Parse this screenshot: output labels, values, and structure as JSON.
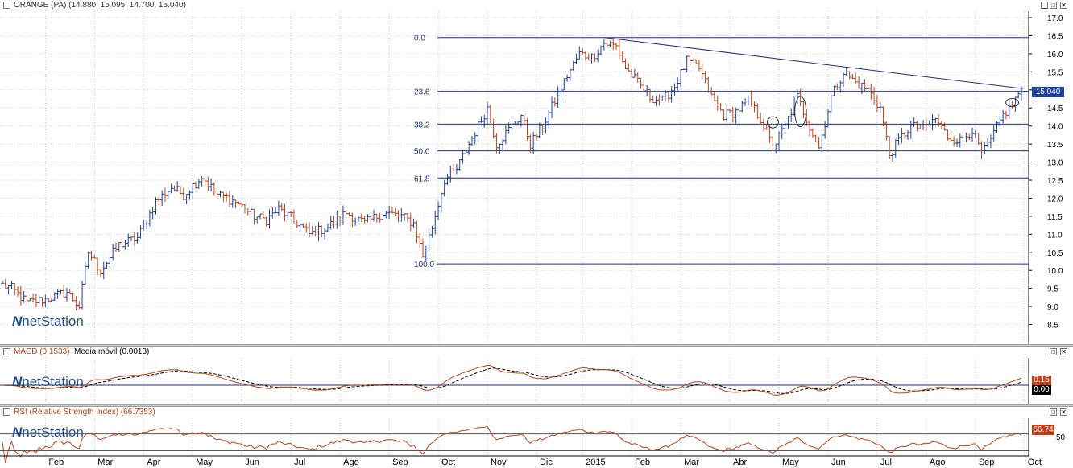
{
  "main_pane": {
    "title": "ORANGE (PA) (14.880, 15.095, 14.700, 15.040)",
    "price_tag": "15.040",
    "logo_mark": "N",
    "logo_text": "netStation"
  },
  "macd_pane": {
    "title": "MACD (0.1533)",
    "title2": "Media móvil (0.0013)",
    "tag_macd": "0.15",
    "tag_signal": "0.00",
    "logo_mark": "N",
    "logo_text": "netStation"
  },
  "rsi_pane": {
    "title": "RSI (Relative Strength Index) (66.7353)",
    "tag_rsi": "66.74",
    "axis_label": "50",
    "logo_mark": "N",
    "logo_text": "netStation"
  },
  "window_buttons": {
    "minimize": "_",
    "maximize": "□",
    "close": "✕"
  },
  "colors": {
    "up": "#1f3f9f",
    "down": "#c0401a",
    "fib": "#1f2f7f",
    "macd": "#c0401a",
    "signal": "#000000",
    "rsi": "#c0401a"
  },
  "chart_data": [
    {
      "type": "ohlc",
      "title": "ORANGE (PA) (14.880, 15.095, 14.700, 15.040)",
      "ylim": [
        8.0,
        17.0
      ],
      "y_ticks": [
        "8.5",
        "9.0",
        "9.5",
        "10.0",
        "10.5",
        "11.0",
        "11.5",
        "12.0",
        "12.5",
        "13.0",
        "13.5",
        "14.0",
        "14.5",
        "15.0",
        "15.5",
        "16.0",
        "16.5",
        "17.0"
      ],
      "x_tick_labels": [
        "Feb",
        "Mar",
        "Apr",
        "May",
        "Jun",
        "Jul",
        "Ago",
        "Sep",
        "Oct",
        "Nov",
        "Dic",
        "2015",
        "Feb",
        "Mar",
        "Abr",
        "May",
        "Jun",
        "Jul",
        "Ago",
        "Sep",
        "Oct"
      ],
      "last": {
        "open": 14.88,
        "high": 15.095,
        "low": 14.7,
        "close": 15.04
      },
      "anchors": [
        {
          "t": 0,
          "v": 9.6
        },
        {
          "t": 3,
          "v": 9.5
        },
        {
          "t": 8,
          "v": 9.1
        },
        {
          "t": 14,
          "v": 9.2
        },
        {
          "t": 21,
          "v": 9.4
        },
        {
          "t": 25,
          "v": 9.0
        },
        {
          "t": 28,
          "v": 10.5
        },
        {
          "t": 32,
          "v": 10.0
        },
        {
          "t": 38,
          "v": 10.7
        },
        {
          "t": 44,
          "v": 10.9
        },
        {
          "t": 50,
          "v": 11.9
        },
        {
          "t": 55,
          "v": 12.3
        },
        {
          "t": 59,
          "v": 12.1
        },
        {
          "t": 65,
          "v": 12.6
        },
        {
          "t": 70,
          "v": 12.1
        },
        {
          "t": 76,
          "v": 11.9
        },
        {
          "t": 82,
          "v": 11.5
        },
        {
          "t": 86,
          "v": 11.4
        },
        {
          "t": 90,
          "v": 11.7
        },
        {
          "t": 95,
          "v": 11.4
        },
        {
          "t": 100,
          "v": 11.0
        },
        {
          "t": 106,
          "v": 11.2
        },
        {
          "t": 112,
          "v": 11.6
        },
        {
          "t": 118,
          "v": 11.3
        },
        {
          "t": 124,
          "v": 11.6
        },
        {
          "t": 130,
          "v": 11.5
        },
        {
          "t": 134,
          "v": 11.3
        },
        {
          "t": 137,
          "v": 10.4
        },
        {
          "t": 140,
          "v": 11.2
        },
        {
          "t": 144,
          "v": 12.5
        },
        {
          "t": 148,
          "v": 12.8
        },
        {
          "t": 152,
          "v": 13.5
        },
        {
          "t": 155,
          "v": 14.0
        },
        {
          "t": 158,
          "v": 14.5
        },
        {
          "t": 161,
          "v": 13.5
        },
        {
          "t": 165,
          "v": 13.9
        },
        {
          "t": 169,
          "v": 14.3
        },
        {
          "t": 172,
          "v": 13.5
        },
        {
          "t": 176,
          "v": 14.0
        },
        {
          "t": 180,
          "v": 14.7
        },
        {
          "t": 184,
          "v": 15.4
        },
        {
          "t": 188,
          "v": 16.0
        },
        {
          "t": 192,
          "v": 15.9
        },
        {
          "t": 196,
          "v": 16.3
        },
        {
          "t": 200,
          "v": 16.2
        },
        {
          "t": 203,
          "v": 15.6
        },
        {
          "t": 207,
          "v": 15.2
        },
        {
          "t": 211,
          "v": 14.8
        },
        {
          "t": 215,
          "v": 14.7
        },
        {
          "t": 219,
          "v": 15.1
        },
        {
          "t": 223,
          "v": 15.8
        },
        {
          "t": 227,
          "v": 15.6
        },
        {
          "t": 231,
          "v": 14.8
        },
        {
          "t": 235,
          "v": 14.3
        },
        {
          "t": 239,
          "v": 14.4
        },
        {
          "t": 243,
          "v": 14.7
        },
        {
          "t": 247,
          "v": 14.2
        },
        {
          "t": 251,
          "v": 13.4
        },
        {
          "t": 255,
          "v": 14.0
        },
        {
          "t": 259,
          "v": 14.8
        },
        {
          "t": 263,
          "v": 14.0
        },
        {
          "t": 266,
          "v": 13.4
        },
        {
          "t": 270,
          "v": 14.8
        },
        {
          "t": 274,
          "v": 15.5
        },
        {
          "t": 278,
          "v": 15.2
        },
        {
          "t": 282,
          "v": 15.0
        },
        {
          "t": 286,
          "v": 14.5
        },
        {
          "t": 289,
          "v": 13.2
        },
        {
          "t": 292,
          "v": 13.6
        },
        {
          "t": 296,
          "v": 14.0
        },
        {
          "t": 300,
          "v": 13.9
        },
        {
          "t": 304,
          "v": 14.2
        },
        {
          "t": 308,
          "v": 13.7
        },
        {
          "t": 312,
          "v": 13.6
        },
        {
          "t": 316,
          "v": 13.9
        },
        {
          "t": 319,
          "v": 13.2
        },
        {
          "t": 322,
          "v": 13.6
        },
        {
          "t": 326,
          "v": 14.3
        },
        {
          "t": 329,
          "v": 14.6
        },
        {
          "t": 332,
          "v": 15.04
        }
      ],
      "fibonacci": {
        "levels": [
          {
            "label": "0.0",
            "value": 16.45
          },
          {
            "label": "23.6",
            "value": 14.96
          },
          {
            "label": "38.2",
            "value": 14.05
          },
          {
            "label": "50.0",
            "value": 13.31
          },
          {
            "label": "61.8",
            "value": 12.56
          },
          {
            "label": "100.0",
            "value": 10.18
          }
        ]
      },
      "trendline": {
        "from": {
          "t": 196,
          "v": 16.45
        },
        "to": {
          "t": 332,
          "v": 15.04
        }
      }
    },
    {
      "type": "line",
      "title": "MACD (0.1533)",
      "series": [
        {
          "name": "MACD (0.1533)",
          "last": 0.1533
        },
        {
          "name": "Media móvil (0.0013)",
          "last": 0.0013
        }
      ]
    },
    {
      "type": "line",
      "title": "RSI (Relative Strength Index) (66.7353)",
      "y_ticks": [
        "50"
      ],
      "series": [
        {
          "name": "RSI (Relative Strength Index) (66.7353)",
          "last": 66.7353
        }
      ]
    }
  ]
}
